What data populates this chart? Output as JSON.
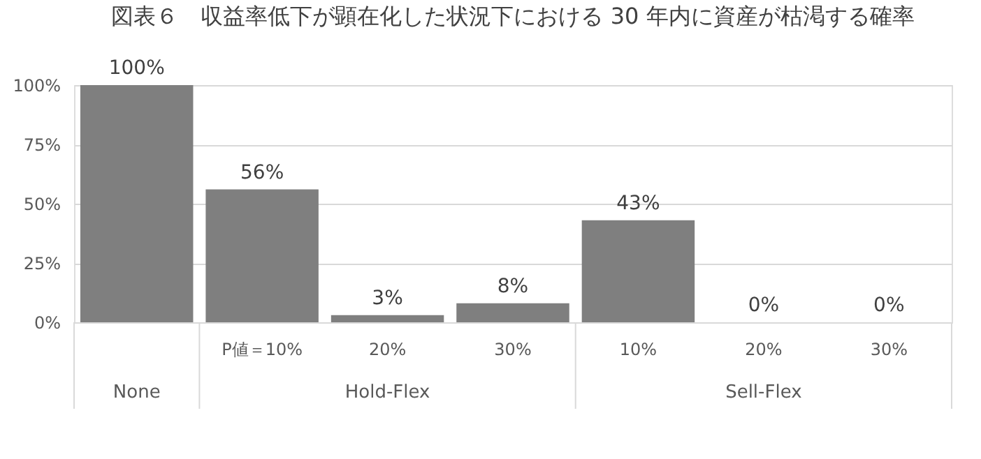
{
  "chart_data": {
    "type": "bar",
    "title": "図表６　収益率低下が顕在化した状況下における 30 年内に資産が枯渇する確率",
    "categories": [
      null,
      "P値＝10%",
      "20%",
      "30%",
      "10%",
      "20%",
      "30%"
    ],
    "values": [
      100,
      56,
      3,
      8,
      43,
      0,
      0
    ],
    "value_labels": [
      "100%",
      "56%",
      "3%",
      "8%",
      "43%",
      "0%",
      "0%"
    ],
    "color": "#7f7f7f",
    "ylim": [
      0,
      100
    ],
    "yticks": [
      {
        "value": 0,
        "label": "0%"
      },
      {
        "value": 25,
        "label": "25%"
      },
      {
        "value": 50,
        "label": "50%"
      },
      {
        "value": 75,
        "label": "75%"
      },
      {
        "value": 100,
        "label": "100%"
      }
    ],
    "grid": "y",
    "annotations": [
      "None",
      "Hold-Flex",
      "Sell-Flex"
    ]
  }
}
